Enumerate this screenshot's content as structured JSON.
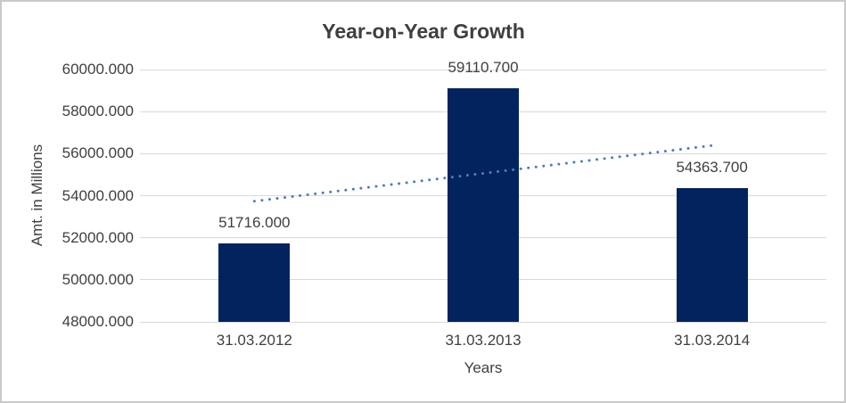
{
  "chart_data": {
    "type": "bar",
    "title": "Year-on-Year Growth",
    "xlabel": "Years",
    "ylabel": "Amt. in Millions",
    "categories": [
      "31.03.2012",
      "31.03.2013",
      "31.03.2014"
    ],
    "values": [
      51716.0,
      59110.7,
      54363.7
    ],
    "data_labels": [
      "51716.000",
      "59110.700",
      "54363.700"
    ],
    "ylim": [
      48000,
      60000
    ],
    "ytick_step": 2000,
    "ytick_labels": [
      "48000.000",
      "50000.000",
      "52000.000",
      "54000.000",
      "56000.000",
      "58000.000",
      "60000.000"
    ],
    "grid": true,
    "legend_position": "none",
    "colors": {
      "bar": "#03235f",
      "trendline": "#4a7ebb",
      "gridline": "#d9d9d9",
      "text": "#404040",
      "frame_border": "#c9c9c9"
    },
    "trendline": {
      "type": "linear",
      "style": "dotted",
      "color": "#4a7ebb"
    }
  }
}
